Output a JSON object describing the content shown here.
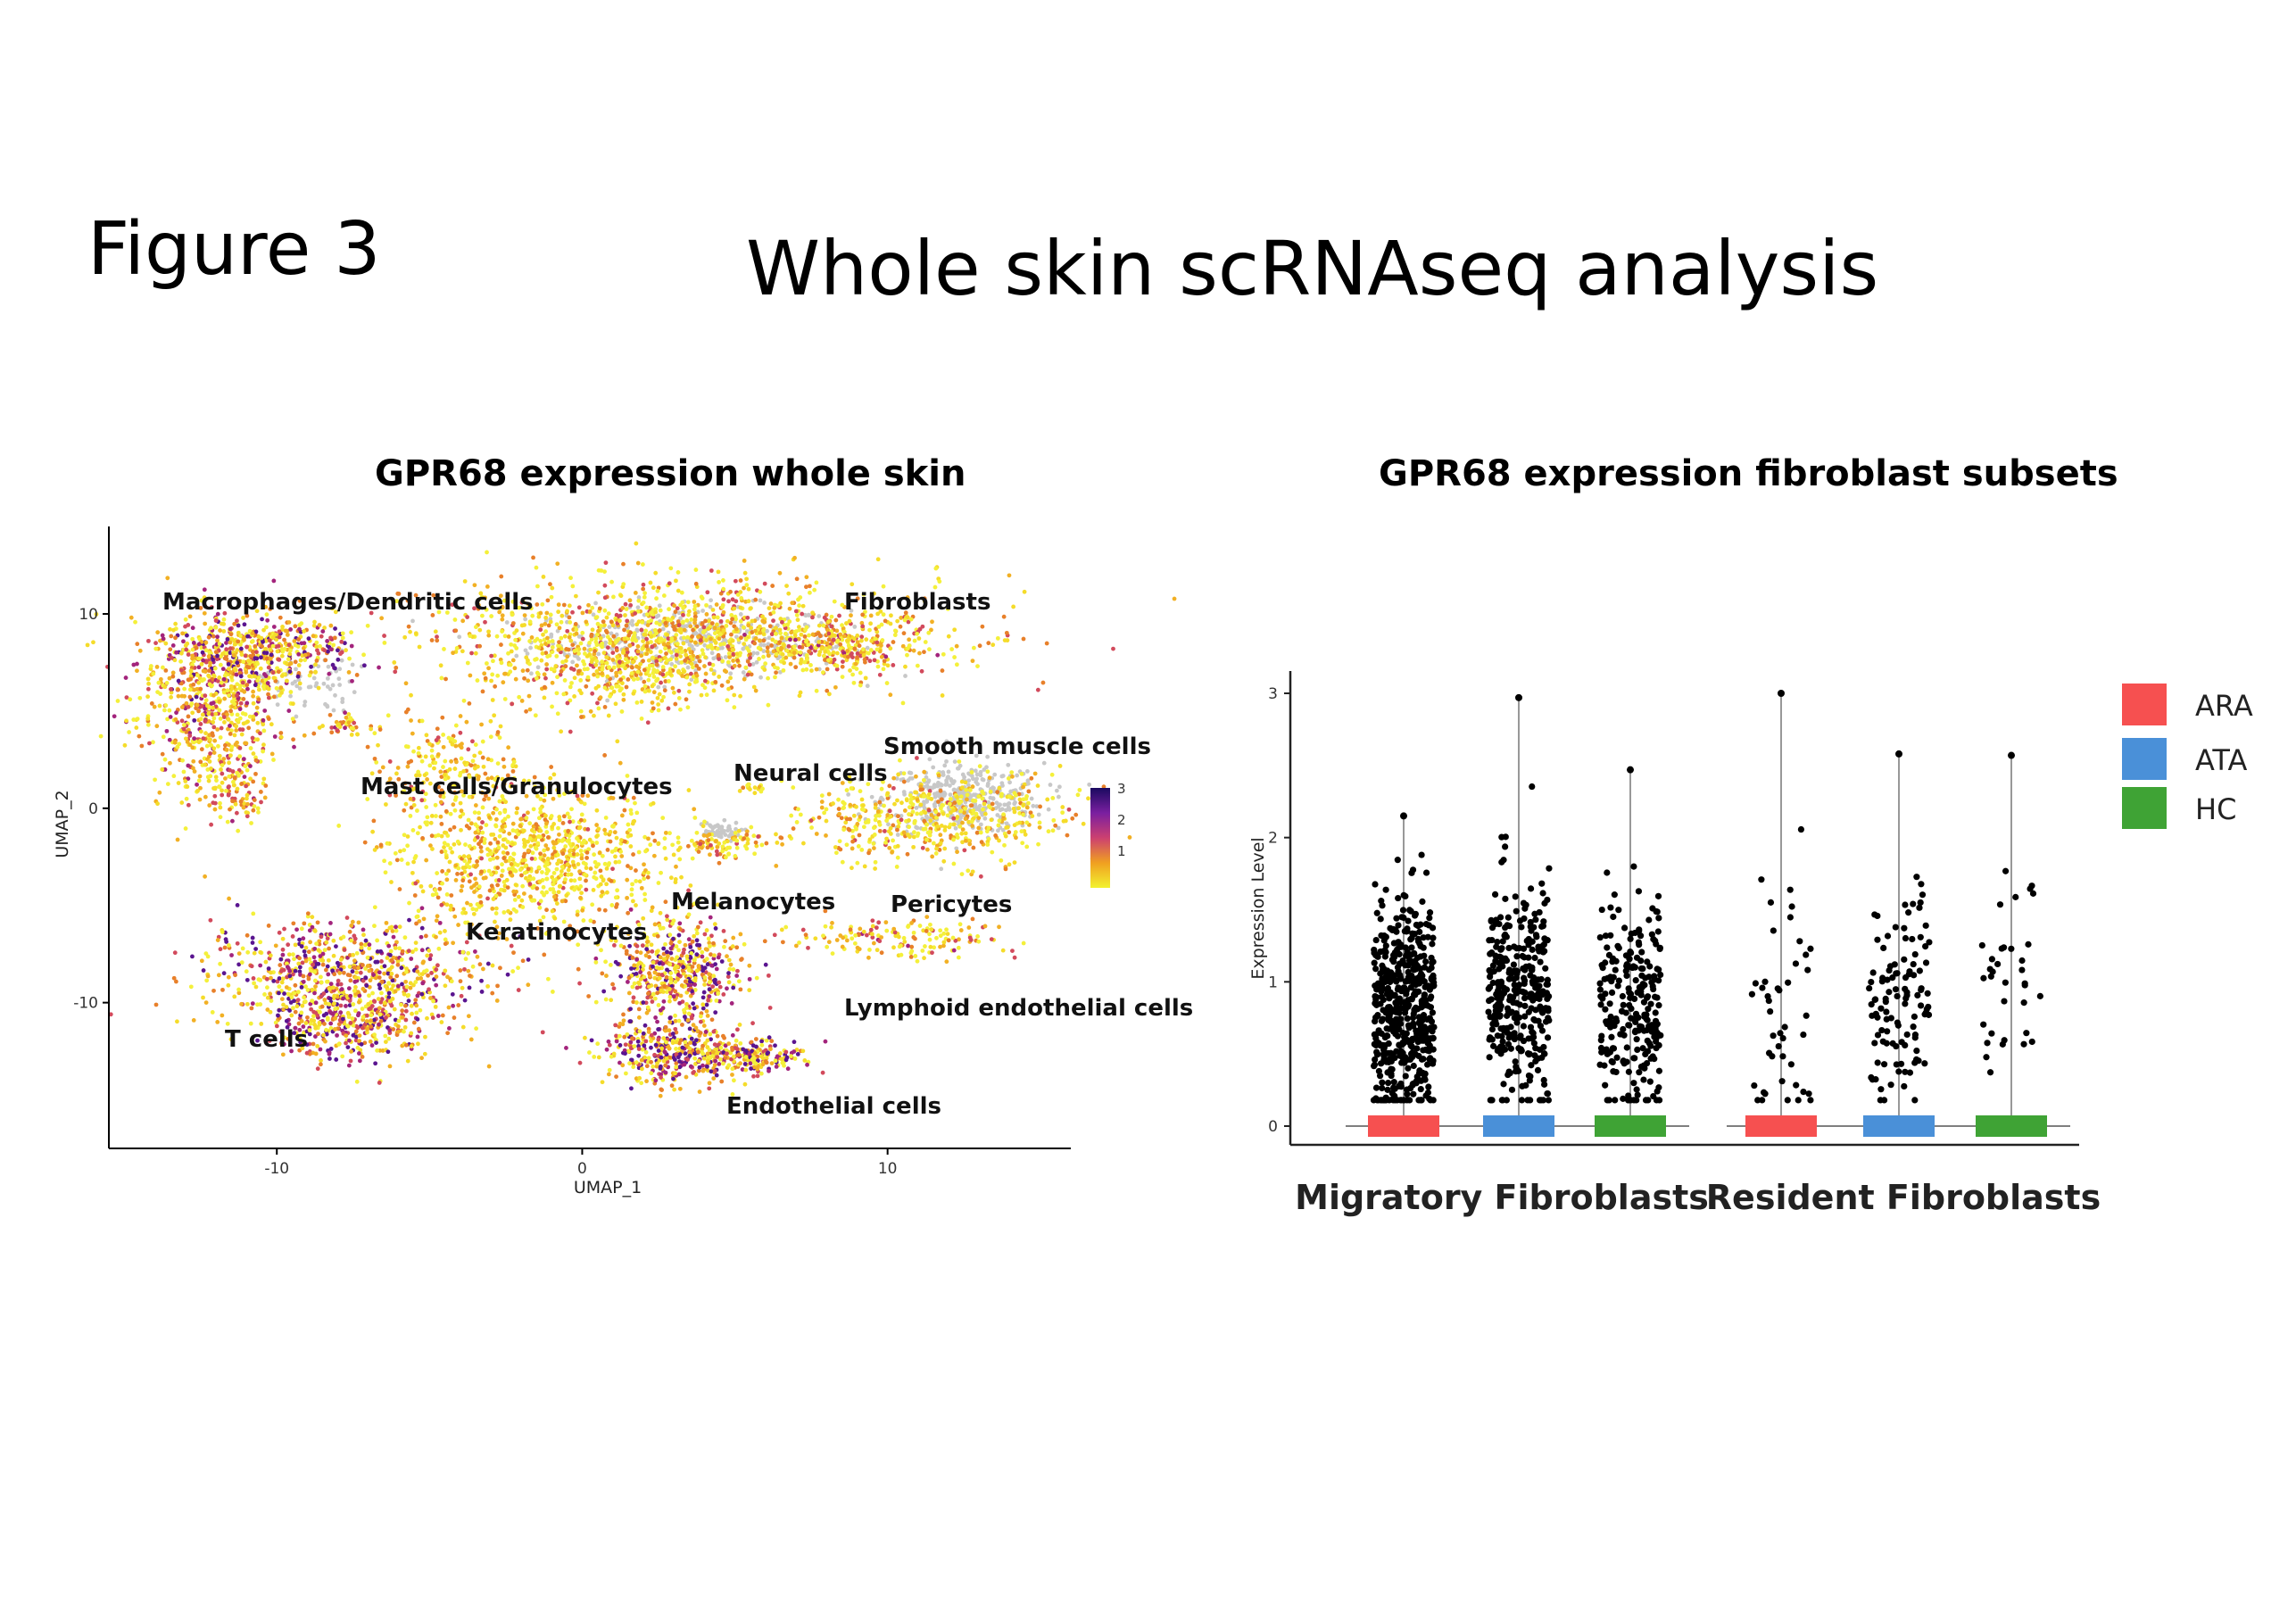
{
  "figure": {
    "label": "Figure 3",
    "title": "Whole skin scRNAseq analysis"
  },
  "panels": {
    "umap_title": "GPR68 expression whole skin",
    "violin_title": "GPR68 expression fibroblast subsets"
  },
  "chart_data": [
    {
      "type": "scatter",
      "title": "GPR68 expression whole skin",
      "xlabel": "UMAP_1",
      "ylabel": "UMAP_2",
      "xlim": [
        -15.5,
        16
      ],
      "ylim": [
        -17.5,
        14.5
      ],
      "x_ticks": [
        -10,
        0,
        10
      ],
      "y_ticks": [
        10,
        0,
        -10
      ],
      "colorbar": {
        "ticks": [
          1,
          2,
          3
        ],
        "colors": [
          "#f2f230",
          "#f0a020",
          "#cc4070",
          "#7a1fa0",
          "#1a0a60"
        ]
      },
      "grid": false,
      "clusters": [
        {
          "label": "Macrophages/Dendritic cells",
          "center": [
            -11,
            5
          ]
        },
        {
          "label": "Fibroblasts",
          "center": [
            3.5,
            9
          ]
        },
        {
          "label": "Smooth muscle cells",
          "center": [
            11.5,
            0.5
          ]
        },
        {
          "label": "Neural cells",
          "center": [
            5.5,
            1
          ]
        },
        {
          "label": "Mast cells/Granulocytes",
          "center": [
            -2.5,
            -2.5
          ]
        },
        {
          "label": "Melanocytes",
          "center": [
            4.5,
            -1.8
          ]
        },
        {
          "label": "Pericytes",
          "center": [
            9.5,
            -6.5
          ]
        },
        {
          "label": "Keratinocytes",
          "center": [
            -1,
            -3
          ]
        },
        {
          "label": "Lymphoid endothelial cells",
          "center": [
            9.5,
            -6.8
          ]
        },
        {
          "label": "T cells",
          "center": [
            -8,
            -10
          ]
        },
        {
          "label": "Endothelial cells",
          "center": [
            3.5,
            -11
          ]
        }
      ]
    },
    {
      "type": "scatter",
      "subtype": "violin-jitter",
      "title": "GPR68 expression fibroblast subsets",
      "ylabel": "Expression Level",
      "ylim": [
        0,
        3.1
      ],
      "y_ticks": [
        0,
        1,
        2,
        3
      ],
      "groups": [
        "Migratory Fibroblasts",
        "Resident Fibroblasts"
      ],
      "series": [
        {
          "name": "ARA",
          "color": "#f65050",
          "group": "Migratory Fibroblasts",
          "max": 2.15,
          "n": 520,
          "median": 0.8
        },
        {
          "name": "ATA",
          "color": "#4a90d8",
          "group": "Migratory Fibroblasts",
          "max": 2.97,
          "n": 330,
          "median": 0.9
        },
        {
          "name": "HC",
          "color": "#3fa335",
          "group": "Migratory Fibroblasts",
          "max": 2.47,
          "n": 240,
          "median": 0.85
        },
        {
          "name": "ARA",
          "color": "#f65050",
          "group": "Resident Fibroblasts",
          "max": 3.0,
          "n": 45,
          "median": 0.8
        },
        {
          "name": "ATA",
          "color": "#4a90d8",
          "group": "Resident Fibroblasts",
          "max": 2.58,
          "n": 110,
          "median": 0.9
        },
        {
          "name": "HC",
          "color": "#3fa335",
          "group": "Resident Fibroblasts",
          "max": 2.57,
          "n": 35,
          "median": 1.1
        }
      ],
      "legend": [
        {
          "name": "ARA",
          "color": "#f65050"
        },
        {
          "name": "ATA",
          "color": "#4a90d8"
        },
        {
          "name": "HC",
          "color": "#3fa335"
        }
      ],
      "legend_position": "right"
    }
  ]
}
